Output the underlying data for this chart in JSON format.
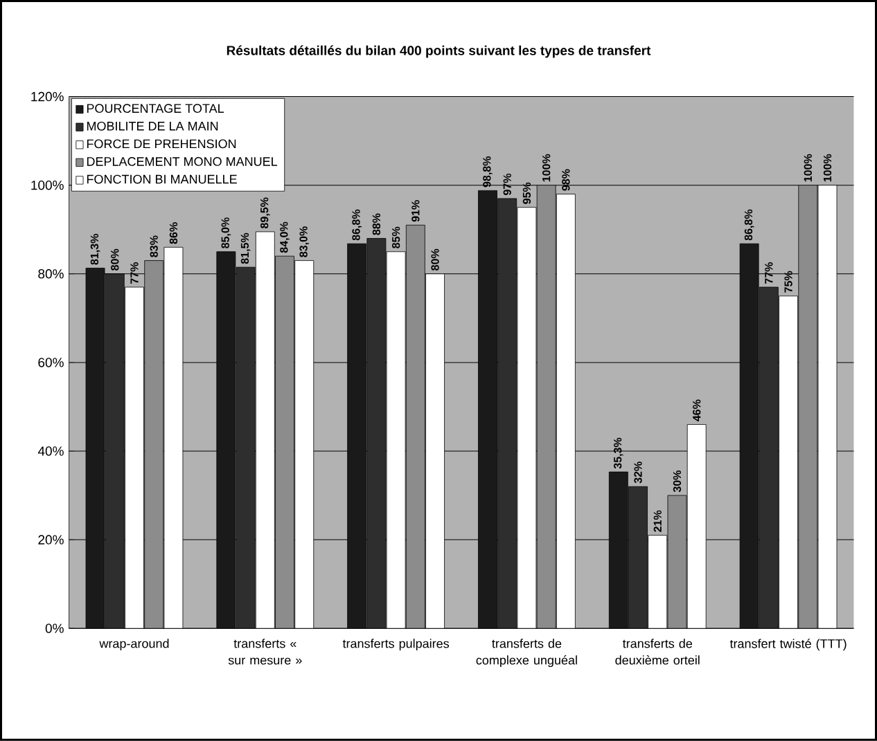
{
  "chart_data": {
    "type": "bar",
    "title": "Résultats détaillés du bilan 400 points suivant les types de transfert",
    "categories": [
      "wrap-around",
      "transferts « sur mesure »",
      "transferts pulpaires",
      "transferts de complexe unguéal",
      "transferts de deuxième orteil",
      "transfert twisté (TTT)"
    ],
    "series": [
      {
        "name": "POURCENTAGE TOTAL",
        "color": "#1a1a1a",
        "values": [
          81.3,
          85.0,
          86.8,
          98.8,
          35.3,
          86.8
        ],
        "value_labels": [
          "81,3%",
          "85,0%",
          "86,8%",
          "98,8%",
          "35,3%",
          "86,8%"
        ]
      },
      {
        "name": "MOBILITE DE LA MAIN",
        "color": "#2e2e2e",
        "values": [
          80,
          81.5,
          88,
          97,
          32,
          77
        ],
        "value_labels": [
          "80%",
          "81,5%",
          "88%",
          "97%",
          "32%",
          "77%"
        ]
      },
      {
        "name": "FORCE DE PREHENSION",
        "color": "#ffffff",
        "values": [
          77,
          89.5,
          85,
          95,
          21,
          75
        ],
        "value_labels": [
          "77%",
          "89,5%",
          "85%",
          "95%",
          "21%",
          "75%"
        ]
      },
      {
        "name": "DEPLACEMENT MONO MANUEL",
        "color": "#8c8c8c",
        "values": [
          83,
          84.0,
          91,
          100,
          30,
          100
        ],
        "value_labels": [
          "83%",
          "84,0%",
          "91%",
          "100%",
          "30%",
          "100%"
        ]
      },
      {
        "name": "FONCTION BI MANUELLE",
        "color": "#ffffff",
        "values": [
          86,
          83.0,
          80,
          98,
          46,
          100
        ],
        "value_labels": [
          "86%",
          "83,0%",
          "80%",
          "98%",
          "46%",
          "100%"
        ]
      }
    ],
    "ylim": [
      0,
      120
    ],
    "yticks": [
      {
        "value": 0,
        "label": "0%"
      },
      {
        "value": 20,
        "label": "20%"
      },
      {
        "value": 40,
        "label": "40%"
      },
      {
        "value": 60,
        "label": "60%"
      },
      {
        "value": 80,
        "label": "80%"
      },
      {
        "value": 100,
        "label": "100%"
      },
      {
        "value": 120,
        "label": "120%"
      }
    ],
    "grid": "y",
    "legend": "top left"
  }
}
